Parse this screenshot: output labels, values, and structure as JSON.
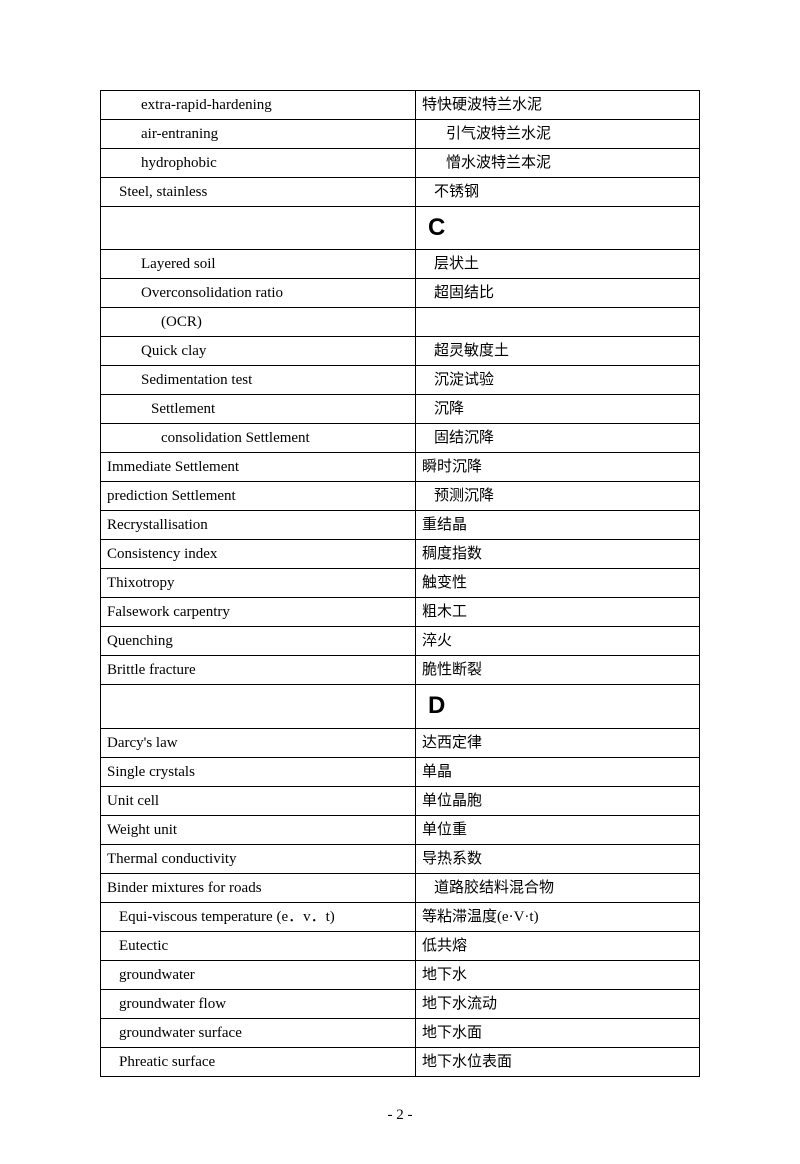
{
  "page_number": "- 2 -",
  "table": {
    "rows": [
      {
        "left": "extra-rapid-hardening",
        "left_indent": "indent-1",
        "right": "特快硬波特兰水泥",
        "right_indent": ""
      },
      {
        "left": "air-entraning",
        "left_indent": "indent-1",
        "right": "引气波特兰水泥",
        "right_indent": "indent-md"
      },
      {
        "left": "hydrophobic",
        "left_indent": "indent-1",
        "right": "憎水波特兰本泥",
        "right_indent": "indent-md"
      },
      {
        "left": "Steel, stainless",
        "left_indent": "indent-sm",
        "right": "不锈钢",
        "right_indent": "indent-sm"
      },
      {
        "section": "C"
      },
      {
        "left": "Layered soil",
        "left_indent": "indent-1",
        "right": "层状土",
        "right_indent": "indent-sm"
      },
      {
        "left": "Overconsolidation ratio",
        "left_indent": "indent-1",
        "right": "超固结比",
        "right_indent": "indent-sm"
      },
      {
        "left": "(OCR)",
        "left_indent": "indent-2",
        "right": "",
        "right_indent": ""
      },
      {
        "left": "Quick clay",
        "left_indent": "indent-1",
        "right": "超灵敏度土",
        "right_indent": "indent-sm"
      },
      {
        "left": "Sedimentation test",
        "left_indent": "indent-1",
        "right": "沉淀试验",
        "right_indent": "indent-sm"
      },
      {
        "left": "Settlement",
        "left_indent": "indent-1",
        "right": "沉降",
        "right_indent": "indent-sm",
        "left_extra_pad": true
      },
      {
        "left": "consolidation Settlement",
        "left_indent": "indent-2",
        "right": "固结沉降",
        "right_indent": "indent-sm"
      },
      {
        "left": "Immediate Settlement",
        "left_indent": "",
        "right": "瞬时沉降",
        "right_indent": ""
      },
      {
        "left": "prediction Settlement",
        "left_indent": "",
        "right": "预测沉降",
        "right_indent": "indent-sm"
      },
      {
        "left": "Recrystallisation",
        "left_indent": "",
        "right": "重结晶",
        "right_indent": ""
      },
      {
        "left": "Consistency index",
        "left_indent": "",
        "right": "稠度指数",
        "right_indent": ""
      },
      {
        "left": "Thixotropy",
        "left_indent": "",
        "right": "触变性",
        "right_indent": ""
      },
      {
        "left": "Falsework carpentry",
        "left_indent": "",
        "right": "粗木工",
        "right_indent": ""
      },
      {
        "left": "Quenching",
        "left_indent": "",
        "right": "淬火",
        "right_indent": ""
      },
      {
        "left": "Brittle fracture",
        "left_indent": "",
        "right": "脆性断裂",
        "right_indent": ""
      },
      {
        "section": "D"
      },
      {
        "left": "Darcy's law",
        "left_indent": "",
        "right": "达西定律",
        "right_indent": ""
      },
      {
        "left": "Single crystals",
        "left_indent": "",
        "right": "单晶",
        "right_indent": ""
      },
      {
        "left": "Unit cell",
        "left_indent": "",
        "right": "单位晶胞",
        "right_indent": ""
      },
      {
        "left": "Weight unit",
        "left_indent": "",
        "right": "单位重",
        "right_indent": ""
      },
      {
        "left": "Thermal conductivity",
        "left_indent": "",
        "right": "导热系数",
        "right_indent": ""
      },
      {
        "left": "Binder mixtures for roads",
        "left_indent": "",
        "right": "道路胶结料混合物",
        "right_indent": "indent-sm"
      },
      {
        "left": "Equi-viscous temperature (e．v．t)",
        "left_indent": "indent-sm",
        "right": "等粘滞温度(e·V·t)",
        "right_indent": "",
        "multiline": true
      },
      {
        "left": "Eutectic",
        "left_indent": "indent-sm",
        "right": "低共熔",
        "right_indent": ""
      },
      {
        "left": "groundwater",
        "left_indent": "indent-sm",
        "right": "地下水",
        "right_indent": ""
      },
      {
        "left": "groundwater flow",
        "left_indent": "indent-sm",
        "right": "地下水流动",
        "right_indent": ""
      },
      {
        "left": "groundwater surface",
        "left_indent": "indent-sm",
        "right": "地下水面",
        "right_indent": ""
      },
      {
        "left": "Phreatic surface",
        "left_indent": "indent-sm",
        "right": "地下水位表面",
        "right_indent": ""
      }
    ]
  }
}
